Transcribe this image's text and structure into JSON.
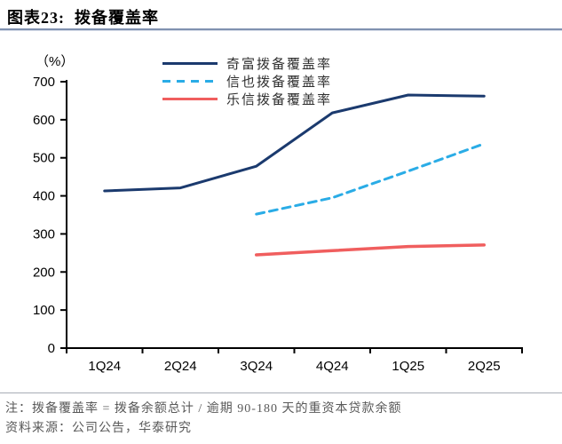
{
  "header": {
    "title": "图表23:  拨备覆盖率"
  },
  "chart_data": {
    "type": "line",
    "title": "拨备覆盖率",
    "unit_label": "（%）",
    "categories": [
      "1Q24",
      "2Q24",
      "3Q24",
      "4Q24",
      "1Q25",
      "2Q25"
    ],
    "series": [
      {
        "name": "奇富拨备覆盖率",
        "color": "#1b3a6e",
        "style": "solid",
        "values": [
          413,
          421,
          478,
          618,
          665,
          662
        ]
      },
      {
        "name": "信也拨备覆盖率",
        "color": "#2aace6",
        "style": "dashed",
        "values": [
          null,
          null,
          352,
          395,
          465,
          537
        ]
      },
      {
        "name": "乐信拨备覆盖率",
        "color": "#f05e5e",
        "style": "solid",
        "values": [
          null,
          null,
          245,
          256,
          267,
          271
        ]
      }
    ],
    "ylim": [
      0,
      700
    ],
    "ytick_step": 100,
    "yticks": [
      0,
      100,
      200,
      300,
      400,
      500,
      600,
      700
    ],
    "grid": false,
    "legend_position": "top-center",
    "axis_color": "#000000"
  },
  "footer": {
    "note": "注：拨备覆盖率 = 拨备余额总计 / 逾期 90-180 天的重资本贷款余额",
    "source": "资料来源：公司公告，华泰研究"
  }
}
